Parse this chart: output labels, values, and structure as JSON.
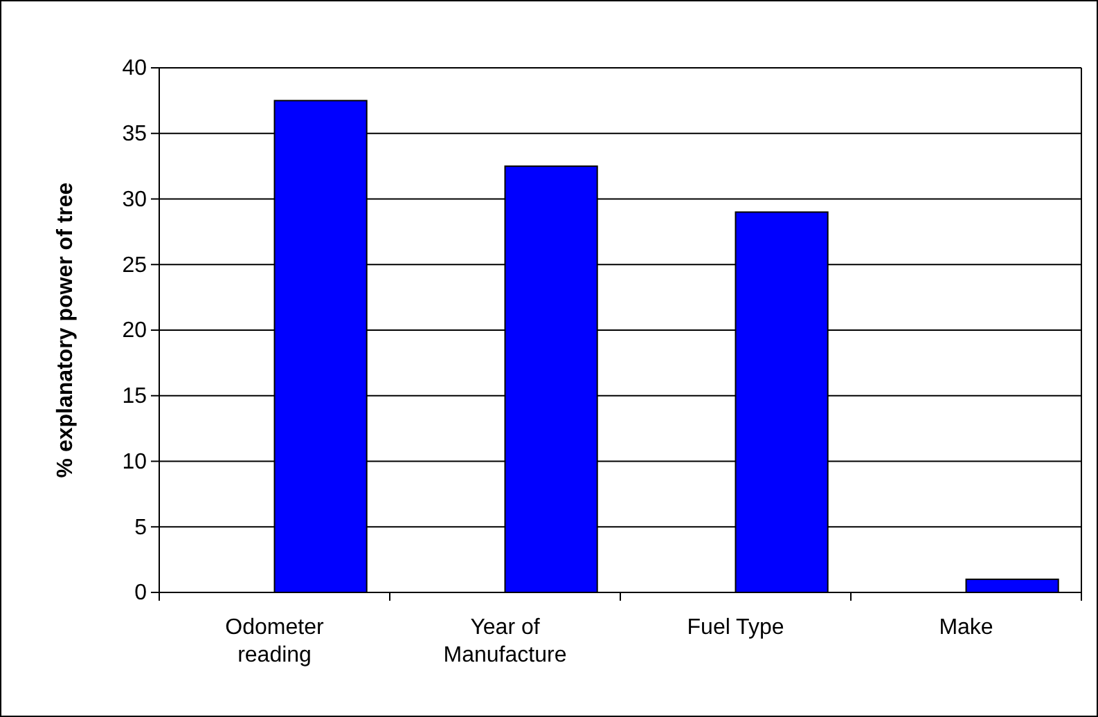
{
  "chart_data": {
    "type": "bar",
    "ylabel": "% explanatory power of tree",
    "categories": [
      "Odometer reading",
      "Year of Manufacture",
      "Fuel Type",
      "Make"
    ],
    "values": [
      37.5,
      32.5,
      29,
      1
    ],
    "color": "#0000ff",
    "ylim": [
      0,
      40
    ],
    "yticks": [
      0,
      5,
      10,
      15,
      20,
      25,
      30,
      35,
      40
    ],
    "grid": "y"
  }
}
